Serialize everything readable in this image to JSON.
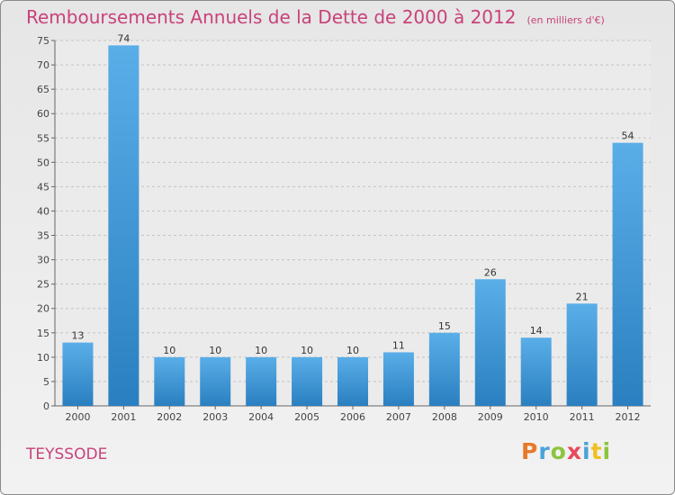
{
  "chart_data": {
    "type": "bar",
    "title": "Remboursements Annuels de la Dette de 2000 à 2012",
    "subtitle": "(en milliers d'€)",
    "categories": [
      "2000",
      "2001",
      "2002",
      "2003",
      "2004",
      "2005",
      "2006",
      "2007",
      "2008",
      "2009",
      "2010",
      "2011",
      "2012"
    ],
    "values": [
      13,
      74,
      10,
      10,
      10,
      10,
      10,
      11,
      15,
      26,
      14,
      21,
      54
    ],
    "ylim": [
      0,
      75
    ],
    "yticks": [
      0,
      5,
      10,
      15,
      20,
      25,
      30,
      35,
      40,
      45,
      50,
      55,
      60,
      65,
      70,
      75
    ],
    "grid": true,
    "colors": {
      "bar_light": "#5aaee8",
      "bar_dark": "#2a7fc0",
      "title": "#c8427a"
    }
  },
  "commune": "TEYSSODE",
  "logo": [
    "P",
    "r",
    "o",
    "x",
    "i",
    "t",
    "i"
  ]
}
